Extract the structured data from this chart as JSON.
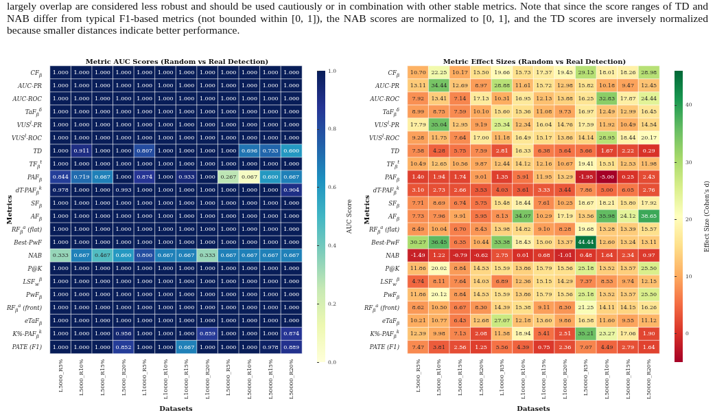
{
  "chart_data": [
    {
      "type": "heatmap",
      "title": "Metric AUC Scores (Random vs Real Detection)",
      "xlabel": "Datasets",
      "ylabel": "Metrics",
      "clabel": "AUC Score",
      "annotations": [
        "largely overlap are considered less robust and should be used cautiously or in combination with other stable metrics. Note that since the score ranges of TD and NAB differ from typical F1-based metrics (not bounded within [0, 1]), the NAB scores are normalized to [0, 1], and the TD scores are inversely normalized because smaller distances indicate better performance."
      ],
      "categories": [
        "L5000_R5%",
        "L5000_R10%",
        "L5000_R15%",
        "L5000_R20%",
        "L10000_R5%",
        "L10000_R10%",
        "L10000_R15%",
        "L10000_R20%",
        "L50000_R5%",
        "L50000_R10%",
        "L50000_R15%",
        "L50000_R20%"
      ],
      "y_categories": [
        "CF$_{β}$",
        "AUC-PR",
        "AUC-ROC",
        "TaF$_{β}$$^{δ}$",
        "VUS$^{l}$-PR",
        "VUS$^{l}$-ROC",
        "TD",
        "TF$_{β}$$^{t}$",
        "PAF$_{β}$",
        "dT-PAF$_{β}$$^{k}$",
        "SF$_{β}$",
        "AF$_{β}$",
        "RF$_{β}$$^{a}$ (flat)",
        "Best-PwF",
        "NAB",
        "P@K",
        "LSF$_{w}$$^{β}$",
        "PwF$_{β}$",
        "RF$_{β}$$^{a}$ (front)",
        "eTaF$_{β}$",
        "K%-PAF$_{β}$$^{k}$",
        "PATE (F1)"
      ],
      "cells": [
        [
          1,
          1,
          1,
          1,
          1,
          1,
          1,
          1,
          1,
          1,
          1,
          1
        ],
        [
          1,
          1,
          1,
          1,
          1,
          1,
          1,
          1,
          1,
          1,
          1,
          1
        ],
        [
          1,
          1,
          1,
          1,
          1,
          1,
          1,
          1,
          1,
          1,
          1,
          1
        ],
        [
          1,
          1,
          1,
          1,
          1,
          1,
          1,
          1,
          1,
          1,
          1,
          1
        ],
        [
          1,
          1,
          1,
          1,
          1,
          1,
          1,
          1,
          1,
          1,
          1,
          1
        ],
        [
          1,
          1,
          1,
          1,
          1,
          1,
          1,
          1,
          1,
          1,
          1,
          1
        ],
        [
          1,
          0.911,
          1,
          1,
          0.807,
          1,
          1,
          1,
          1,
          0.696,
          0.733,
          0.6
        ],
        [
          1,
          1,
          1,
          1,
          1,
          1,
          1,
          1,
          1,
          1,
          1,
          1
        ],
        [
          0.844,
          0.719,
          0.667,
          1,
          0.874,
          1,
          0.933,
          1,
          0.267,
          0.067,
          0.6,
          0.667
        ],
        [
          0.978,
          1,
          1,
          0.993,
          1,
          1,
          1,
          1,
          1,
          1,
          1,
          0.904
        ],
        [
          1,
          1,
          1,
          1,
          1,
          1,
          1,
          1,
          1,
          1,
          1,
          1
        ],
        [
          1,
          1,
          1,
          1,
          1,
          1,
          1,
          1,
          1,
          1,
          1,
          1
        ],
        [
          1,
          1,
          1,
          1,
          1,
          1,
          1,
          1,
          1,
          1,
          1,
          1
        ],
        [
          1,
          1,
          1,
          1,
          1,
          1,
          1,
          1,
          1,
          1,
          1,
          1
        ],
        [
          0.333,
          0.667,
          0.467,
          0.6,
          0.8,
          0.667,
          0.667,
          0.333,
          0.667,
          0.667,
          0.667,
          0.667
        ],
        [
          1,
          1,
          1,
          1,
          1,
          1,
          1,
          1,
          1,
          1,
          1,
          1
        ],
        [
          1,
          1,
          1,
          1,
          1,
          1,
          1,
          1,
          1,
          1,
          1,
          1
        ],
        [
          1,
          1,
          1,
          1,
          1,
          1,
          1,
          1,
          1,
          1,
          1,
          1
        ],
        [
          1,
          1,
          1,
          1,
          1,
          1,
          1,
          1,
          1,
          1,
          1,
          1
        ],
        [
          1,
          1,
          1,
          1,
          1,
          1,
          1,
          1,
          1,
          1,
          1,
          1
        ],
        [
          1,
          1,
          1,
          0.956,
          1,
          1,
          1,
          0.859,
          1,
          1,
          1,
          0.874
        ],
        [
          1,
          1,
          1,
          0.852,
          1,
          1,
          0.667,
          1,
          1,
          1,
          0.978,
          0.889
        ]
      ],
      "cell_labels": [
        [
          "1.000",
          "1.000",
          "1.000",
          "1.000",
          "1.000",
          "1.000",
          "1.000",
          "1.000",
          "1.000",
          "1.000",
          "1.000",
          "1.000"
        ],
        [
          "1.000",
          "1.000",
          "1.000",
          "1.000",
          "1.000",
          "1.000",
          "1.000",
          "1.000",
          "1.000",
          "1.000",
          "1.000",
          "1.000"
        ],
        [
          "1.000",
          "1.000",
          "1.000",
          "1.000",
          "1.000",
          "1.000",
          "1.000",
          "1.000",
          "1.000",
          "1.000",
          "1.000",
          "1.000"
        ],
        [
          "1.000",
          "1.000",
          "1.000",
          "1.000",
          "1.000",
          "1.000",
          "1.000",
          "1.000",
          "1.000",
          "1.000",
          "1.000",
          "1.000"
        ],
        [
          "1.000",
          "1.000",
          "1.000",
          "1.000",
          "1.000",
          "1.000",
          "1.000",
          "1.000",
          "1.000",
          "1.000",
          "1.000",
          "1.000"
        ],
        [
          "1.000",
          "1.000",
          "1.000",
          "1.000",
          "1.000",
          "1.000",
          "1.000",
          "1.000",
          "1.000",
          "1.000",
          "1.000",
          "1.000"
        ],
        [
          "1.000",
          "0.911",
          "1.000",
          "1.000",
          "0.807",
          "1.000",
          "1.000",
          "1.000",
          "1.000",
          "0.696",
          "0.733",
          "0.600"
        ],
        [
          "1.000",
          "1.000",
          "1.000",
          "1.000",
          "1.000",
          "1.000",
          "1.000",
          "1.000",
          "1.000",
          "1.000",
          "1.000",
          "1.000"
        ],
        [
          "0.844",
          "0.719",
          "0.667",
          "1.000",
          "0.874",
          "1.000",
          "0.933",
          "1.000",
          "0.267",
          "0.067",
          "0.600",
          "0.667"
        ],
        [
          "0.978",
          "1.000",
          "1.000",
          "0.993",
          "1.000",
          "1.000",
          "1.000",
          "1.000",
          "1.000",
          "1.000",
          "1.000",
          "0.904"
        ],
        [
          "1.000",
          "1.000",
          "1.000",
          "1.000",
          "1.000",
          "1.000",
          "1.000",
          "1.000",
          "1.000",
          "1.000",
          "1.000",
          "1.000"
        ],
        [
          "1.000",
          "1.000",
          "1.000",
          "1.000",
          "1.000",
          "1.000",
          "1.000",
          "1.000",
          "1.000",
          "1.000",
          "1.000",
          "1.000"
        ],
        [
          "1.000",
          "1.000",
          "1.000",
          "1.000",
          "1.000",
          "1.000",
          "1.000",
          "1.000",
          "1.000",
          "1.000",
          "1.000",
          "1.000"
        ],
        [
          "1.000",
          "1.000",
          "1.000",
          "1.000",
          "1.000",
          "1.000",
          "1.000",
          "1.000",
          "1.000",
          "1.000",
          "1.000",
          "1.000"
        ],
        [
          "0.333",
          "0.667",
          "0.467",
          "0.600",
          "0.800",
          "0.667",
          "0.667",
          "0.333",
          "0.667",
          "0.667",
          "0.667",
          "0.667"
        ],
        [
          "1.000",
          "1.000",
          "1.000",
          "1.000",
          "1.000",
          "1.000",
          "1.000",
          "1.000",
          "1.000",
          "1.000",
          "1.000",
          "1.000"
        ],
        [
          "1.000",
          "1.000",
          "1.000",
          "1.000",
          "1.000",
          "1.000",
          "1.000",
          "1.000",
          "1.000",
          "1.000",
          "1.000",
          "1.000"
        ],
        [
          "1.000",
          "1.000",
          "1.000",
          "1.000",
          "1.000",
          "1.000",
          "1.000",
          "1.000",
          "1.000",
          "1.000",
          "1.000",
          "1.000"
        ],
        [
          "1.000",
          "1.000",
          "1.000",
          "1.000",
          "1.000",
          "1.000",
          "1.000",
          "1.000",
          "1.000",
          "1.000",
          "1.000",
          "1.000"
        ],
        [
          "1.000",
          "1.000",
          "1.000",
          "1.000",
          "1.000",
          "1.000",
          "1.000",
          "1.000",
          "1.000",
          "1.000",
          "1.000",
          "1.000"
        ],
        [
          "1.000",
          "1.000",
          "1.000",
          "0.956",
          "1.000",
          "1.000",
          "1.000",
          "0.859",
          "1.000",
          "1.000",
          "1.000",
          "0.874"
        ],
        [
          "1.000",
          "1.000",
          "1.000",
          "0.852",
          "1.000",
          "1.000",
          "0.667",
          "1.000",
          "1.000",
          "1.000",
          "0.978",
          "0.889"
        ]
      ],
      "data_labels": true,
      "clim": [
        0,
        1
      ],
      "cticks": [
        {
          "value": 0,
          "label": "0.0"
        },
        {
          "value": 0.2,
          "label": "0.2"
        },
        {
          "value": 0.4,
          "label": "0.4"
        },
        {
          "value": 0.6,
          "label": "0.6"
        },
        {
          "value": 0.8,
          "label": "0.8"
        },
        {
          "value": 1,
          "label": "1.0"
        }
      ]
    },
    {
      "type": "heatmap",
      "title": "Metric Effect Sizes (Random vs Real Detection)",
      "xlabel": "Datasets",
      "ylabel": "Metrics",
      "clabel": "Effect Size (Cohen's d)",
      "categories": [
        "L5000_R5%",
        "L5000_R10%",
        "L5000_R15%",
        "L5000_R20%",
        "L10000_R5%",
        "L10000_R10%",
        "L10000_R15%",
        "L10000_R20%",
        "L50000_R5%",
        "L50000_R10%",
        "L50000_R15%",
        "L50000_R20%"
      ],
      "y_categories": [
        "CF$_{β}$",
        "AUC-PR",
        "AUC-ROC",
        "TaF$_{β}$$^{δ}$",
        "VUS$^{l}$-PR",
        "VUS$^{l}$-ROC",
        "TD",
        "TF$_{β}$$^{t}$",
        "PAF$_{β}$",
        "dT-PAF$_{β}$$^{k}$",
        "SF$_{β}$",
        "AF$_{β}$",
        "RF$_{β}$$^{a}$ (flat)",
        "Best-PwF",
        "NAB",
        "P@K",
        "LSF$_{w}$$^{β}$",
        "PwF$_{β}$",
        "RF$_{β}$$^{a}$ (front)",
        "eTaF$_{β}$",
        "K%-PAF$_{β}$$^{k}$",
        "PATE (F1)"
      ],
      "cells": [
        [
          10.7,
          22.25,
          10.17,
          15.5,
          19.66,
          15.73,
          17.37,
          19.45,
          29.13,
          18.01,
          18.26,
          28.98
        ],
        [
          13.11,
          34.44,
          12.69,
          8.97,
          28.88,
          11.61,
          15.72,
          12.98,
          15.82,
          10.18,
          9.47,
          12.45
        ],
        [
          7.92,
          13.41,
          7.14,
          17.13,
          10.31,
          16.95,
          12.13,
          13.88,
          16.25,
          32.83,
          17.87,
          24.44
        ],
        [
          8.99,
          8.75,
          7.59,
          10.1,
          15.6,
          15.36,
          11.08,
          9.73,
          16.97,
          12.49,
          12.99,
          16.45
        ],
        [
          17.79,
          35.04,
          12.95,
          9.19,
          25.34,
          12.34,
          16.04,
          14.76,
          17.59,
          11.92,
          10.49,
          14.54
        ],
        [
          9.28,
          11.75,
          7.64,
          17,
          11.18,
          16.49,
          15.17,
          13.86,
          14.14,
          28.95,
          18.44,
          20.17
        ],
        [
          7.58,
          4.28,
          5.75,
          7.59,
          2.81,
          16.33,
          6.38,
          5.64,
          5.66,
          1.67,
          2.22,
          0.29
        ],
        [
          10.49,
          12.65,
          10.56,
          9.87,
          12.44,
          14.12,
          12.16,
          10.67,
          19.41,
          15.51,
          12.53,
          11.98
        ],
        [
          1.4,
          1.94,
          1.74,
          9.01,
          1.35,
          5.91,
          11.95,
          13.29,
          -1.95,
          -5,
          0.25,
          2.43
        ],
        [
          3.1,
          2.73,
          2.66,
          3.53,
          4.03,
          3.61,
          3.33,
          3.44,
          7.86,
          5,
          6.05,
          2.76
        ],
        [
          7.71,
          8.69,
          6.74,
          5.75,
          15.48,
          18.44,
          7.61,
          10.25,
          18.67,
          18.21,
          15.8,
          17.92
        ],
        [
          7.73,
          7.96,
          9.91,
          5.95,
          8.13,
          34.07,
          10.29,
          17.19,
          13.56,
          35.98,
          24.12,
          38.65
        ],
        [
          8.49,
          10.04,
          6.7,
          8.43,
          13.98,
          14.82,
          9.1,
          8.28,
          19.68,
          13.28,
          13.39,
          15.57
        ],
        [
          30.27,
          36.45,
          6.35,
          10.44,
          33.38,
          18.43,
          15,
          13.37,
          44.44,
          12.6,
          13.24,
          13.11
        ],
        [
          -1.49,
          1.22,
          -0.79,
          -0.62,
          2.75,
          0.01,
          0.68,
          -1.01,
          0.48,
          1.64,
          2.34,
          0.97
        ],
        [
          11.86,
          20.02,
          8.84,
          14.53,
          15.59,
          13.86,
          15.79,
          15.56,
          25.18,
          13.52,
          13.57,
          25.5
        ],
        [
          4.74,
          8.11,
          7.64,
          14.03,
          6.89,
          12.36,
          15.15,
          14.29,
          7.37,
          8.53,
          9.74,
          12.15
        ],
        [
          11.86,
          20.12,
          8.84,
          14.53,
          15.59,
          13.86,
          15.79,
          15.56,
          25.18,
          13.52,
          13.57,
          25.5
        ],
        [
          8.62,
          10.5,
          6.67,
          8.3,
          14.39,
          15.38,
          9.11,
          8.3,
          21.25,
          14.11,
          14.15,
          16.26
        ],
        [
          10.21,
          10.77,
          6.43,
          12.68,
          27.07,
          12.18,
          13.6,
          9.86,
          16.58,
          11.6,
          9.55,
          11.12
        ],
        [
          12.39,
          9.98,
          7.13,
          2.08,
          11.58,
          18.94,
          5.41,
          2.51,
          35.21,
          23.27,
          17.06,
          1.9
        ],
        [
          7.47,
          3.81,
          2.56,
          1.25,
          5.56,
          4.39,
          0.75,
          2.36,
          7.07,
          4.49,
          2.79,
          1.64
        ]
      ],
      "cell_labels": [
        [
          "10.70",
          "22.25",
          "10.17",
          "15.50",
          "19.66",
          "15.73",
          "17.37",
          "19.45",
          "29.13",
          "18.01",
          "18.26",
          "28.98"
        ],
        [
          "13.11",
          "34.44",
          "12.69",
          "8.97",
          "28.88",
          "11.61",
          "15.72",
          "12.98",
          "15.82",
          "10.18",
          "9.47",
          "12.45"
        ],
        [
          "7.92",
          "13.41",
          "7.14",
          "17.13",
          "10.31",
          "16.95",
          "12.13",
          "13.88",
          "16.25",
          "32.83",
          "17.87",
          "24.44"
        ],
        [
          "8.99",
          "8.75",
          "7.59",
          "10.10",
          "15.60",
          "15.36",
          "11.08",
          "9.73",
          "16.97",
          "12.49",
          "12.99",
          "16.45"
        ],
        [
          "17.79",
          "35.04",
          "12.95",
          "9.19",
          "25.34",
          "12.34",
          "16.04",
          "14.76",
          "17.59",
          "11.92",
          "10.49",
          "14.54"
        ],
        [
          "9.28",
          "11.75",
          "7.64",
          "17.00",
          "11.18",
          "16.49",
          "15.17",
          "13.86",
          "14.14",
          "28.95",
          "18.44",
          "20.17"
        ],
        [
          "7.58",
          "4.28",
          "5.75",
          "7.59",
          "2.81",
          "16.33",
          "6.38",
          "5.64",
          "5.66",
          "1.67",
          "2.22",
          "0.29"
        ],
        [
          "10.49",
          "12.65",
          "10.56",
          "9.87",
          "12.44",
          "14.12",
          "12.16",
          "10.67",
          "19.41",
          "15.51",
          "12.53",
          "11.98"
        ],
        [
          "1.40",
          "1.94",
          "1.74",
          "9.01",
          "1.35",
          "5.91",
          "11.95",
          "13.29",
          "-1.95",
          "-5.00",
          "0.25",
          "2.43"
        ],
        [
          "3.10",
          "2.73",
          "2.66",
          "3.53",
          "4.03",
          "3.61",
          "3.33",
          "3.44",
          "7.86",
          "5.00",
          "6.05",
          "2.76"
        ],
        [
          "7.71",
          "8.69",
          "6.74",
          "5.75",
          "15.48",
          "18.44",
          "7.61",
          "10.25",
          "18.67",
          "18.21",
          "15.80",
          "17.92"
        ],
        [
          "7.73",
          "7.96",
          "9.91",
          "5.95",
          "8.13",
          "34.07",
          "10.29",
          "17.19",
          "13.56",
          "35.98",
          "24.12",
          "38.65"
        ],
        [
          "8.49",
          "10.04",
          "6.70",
          "8.43",
          "13.98",
          "14.82",
          "9.10",
          "8.28",
          "19.68",
          "13.28",
          "13.39",
          "15.57"
        ],
        [
          "30.27",
          "36.45",
          "6.35",
          "10.44",
          "33.38",
          "18.43",
          "15.00",
          "13.37",
          "44.44",
          "12.60",
          "13.24",
          "13.11"
        ],
        [
          "-1.49",
          "1.22",
          "-0.79",
          "-0.62",
          "2.75",
          "0.01",
          "0.68",
          "-1.01",
          "0.48",
          "1.64",
          "2.34",
          "0.97"
        ],
        [
          "11.86",
          "20.02",
          "8.84",
          "14.53",
          "15.59",
          "13.86",
          "15.79",
          "15.56",
          "25.18",
          "13.52",
          "13.57",
          "25.50"
        ],
        [
          "4.74",
          "8.11",
          "7.64",
          "14.03",
          "6.89",
          "12.36",
          "15.15",
          "14.29",
          "7.37",
          "8.53",
          "9.74",
          "12.15"
        ],
        [
          "11.86",
          "20.12",
          "8.84",
          "14.53",
          "15.59",
          "13.86",
          "15.79",
          "15.56",
          "25.18",
          "13.52",
          "13.57",
          "25.50"
        ],
        [
          "8.62",
          "10.50",
          "6.67",
          "8.30",
          "14.39",
          "15.38",
          "9.11",
          "8.30",
          "21.25",
          "14.11",
          "14.15",
          "16.26"
        ],
        [
          "10.21",
          "10.77",
          "6.43",
          "12.68",
          "27.07",
          "12.18",
          "13.60",
          "9.86",
          "16.58",
          "11.60",
          "9.55",
          "11.12"
        ],
        [
          "12.39",
          "9.98",
          "7.13",
          "2.08",
          "11.58",
          "18.94",
          "5.41",
          "2.51",
          "35.21",
          "23.27",
          "17.06",
          "1.90"
        ],
        [
          "7.47",
          "3.81",
          "2.56",
          "1.25",
          "5.56",
          "4.39",
          "0.75",
          "2.36",
          "7.07",
          "4.49",
          "2.79",
          "1.64"
        ]
      ],
      "data_labels": true,
      "clim": [
        -5,
        46
      ],
      "cticks": [
        0,
        10,
        20,
        30,
        40
      ]
    }
  ]
}
